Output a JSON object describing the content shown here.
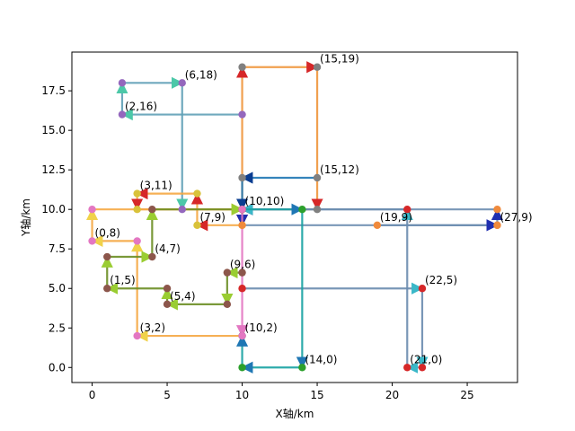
{
  "chart_data": {
    "type": "line",
    "xlabel": "X轴/km",
    "ylabel": "Y轴/km",
    "xlim": [
      -1.35,
      28.35
    ],
    "ylim": [
      -0.95,
      19.95
    ],
    "xticks": [
      0,
      5,
      10,
      15,
      20,
      25
    ],
    "yticks": [
      0.0,
      2.5,
      5.0,
      7.5,
      10.0,
      12.5,
      15.0,
      17.5
    ],
    "xtick_labels": [
      "0",
      "5",
      "10",
      "15",
      "20",
      "25"
    ],
    "ytick_labels": [
      "0.0",
      "2.5",
      "5.0",
      "7.5",
      "10.0",
      "12.5",
      "15.0",
      "17.5"
    ],
    "grid": false,
    "point_labels": [
      {
        "text": "(6,18)",
        "x": 6,
        "y": 18
      },
      {
        "text": "(15,19)",
        "x": 15,
        "y": 19
      },
      {
        "text": "(2,16)",
        "x": 2,
        "y": 16
      },
      {
        "text": "(15,12)",
        "x": 15,
        "y": 12
      },
      {
        "text": "(3,11)",
        "x": 3,
        "y": 11
      },
      {
        "text": "(10,10)",
        "x": 10,
        "y": 10
      },
      {
        "text": "(7,9)",
        "x": 7,
        "y": 9
      },
      {
        "text": "(19,9)",
        "x": 19,
        "y": 9
      },
      {
        "text": "(27,9)",
        "x": 27,
        "y": 9
      },
      {
        "text": "(0,8)",
        "x": 0,
        "y": 8
      },
      {
        "text": "(4,7)",
        "x": 4,
        "y": 7
      },
      {
        "text": "(9,6)",
        "x": 9,
        "y": 6
      },
      {
        "text": "(1,5)",
        "x": 1,
        "y": 5
      },
      {
        "text": "(22,5)",
        "x": 22,
        "y": 5
      },
      {
        "text": "(5,4)",
        "x": 5,
        "y": 4
      },
      {
        "text": "(3,2)",
        "x": 3,
        "y": 2
      },
      {
        "text": "(10,2)",
        "x": 10,
        "y": 2
      },
      {
        "text": "(14,0)",
        "x": 14,
        "y": 0
      },
      {
        "text": "(21,0)",
        "x": 21,
        "y": 0
      }
    ],
    "series": [
      {
        "color": "#5fa0b6",
        "arrow_color": "#4cc8a8",
        "marker_color": "#9467bd",
        "points": [
          [
            10,
            16
          ],
          [
            2,
            16
          ],
          [
            2,
            18
          ],
          [
            6,
            18
          ],
          [
            6,
            10
          ]
        ]
      },
      {
        "color": "#f5a742",
        "arrow_color": "#d62728",
        "marker_color": "#d9c23a",
        "points": [
          [
            10,
            10
          ],
          [
            10,
            9
          ],
          [
            7,
            9
          ],
          [
            7,
            11
          ],
          [
            3,
            11
          ],
          [
            3,
            10
          ],
          [
            10,
            10
          ]
        ]
      },
      {
        "color": "#f5a742",
        "arrow_color": "#f0d24a",
        "marker_color": "#e377c2",
        "points": [
          [
            10,
            2
          ],
          [
            3,
            2
          ],
          [
            3,
            8
          ],
          [
            0,
            8
          ],
          [
            0,
            10
          ],
          [
            10,
            10
          ]
        ]
      },
      {
        "color": "#6b8e23",
        "arrow_color": "#9acd32",
        "marker_color": "#8c564b",
        "points": [
          [
            10,
            6
          ],
          [
            9,
            6
          ],
          [
            9,
            4
          ],
          [
            5,
            4
          ],
          [
            5,
            5
          ],
          [
            1,
            5
          ],
          [
            1,
            7
          ],
          [
            4,
            7
          ],
          [
            4,
            10
          ],
          [
            10,
            10
          ]
        ]
      },
      {
        "color": "#f0963c",
        "arrow_color": "#d62728",
        "marker_color": "#808080",
        "points": [
          [
            10,
            10
          ],
          [
            10,
            19
          ],
          [
            15,
            19
          ],
          [
            15,
            10
          ],
          [
            10,
            10
          ]
        ]
      },
      {
        "color": "#1f77b4",
        "arrow_color": "#0a3d91",
        "marker_color": "#808080",
        "points": [
          [
            15,
            12
          ],
          [
            10,
            12
          ],
          [
            10,
            10
          ]
        ]
      },
      {
        "color": "#6a8caf",
        "arrow_color": "#1f2fb0",
        "marker_color": "#f08a3c",
        "points": [
          [
            19,
            9
          ],
          [
            27,
            9
          ],
          [
            27,
            10
          ],
          [
            10,
            10
          ],
          [
            10,
            9
          ],
          [
            27,
            9
          ]
        ]
      },
      {
        "color": "#6a8caf",
        "arrow_color": "#3ab8c8",
        "marker_color": "#d62728",
        "points": [
          [
            10,
            5
          ],
          [
            22,
            5
          ],
          [
            22,
            0
          ],
          [
            21,
            0
          ],
          [
            21,
            10
          ],
          [
            10,
            10
          ]
        ]
      },
      {
        "color": "#17a2a2",
        "arrow_color": "#1f77b4",
        "marker_color": "#2ca02c",
        "points": [
          [
            10,
            10
          ],
          [
            14,
            10
          ],
          [
            14,
            0
          ],
          [
            10,
            0
          ],
          [
            10,
            2
          ]
        ]
      },
      {
        "color": "#e377c2",
        "arrow_color": "#e377c2",
        "marker_color": "#e377c2",
        "points": [
          [
            10,
            10
          ],
          [
            10,
            2
          ]
        ]
      }
    ]
  }
}
